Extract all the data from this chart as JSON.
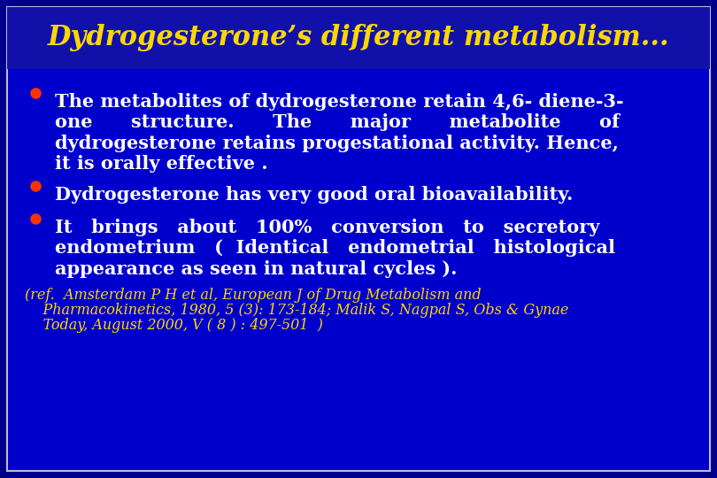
{
  "title": "Dydrogesterone’s different metabolism...",
  "title_color": "#FFD700",
  "title_fontsize": 22,
  "title_bg_color": "#1A1A8C",
  "bg_color": "#0000CC",
  "outer_bg": "#00008B",
  "border_color": "#AAAACC",
  "bullet_color": "#FF3300",
  "text_color": "#FFFFFF",
  "ref_color": "#FFD700",
  "bullet1_lines": [
    "The metabolites of dydrogesterone retain 4,6- diene-3-",
    "one      structure.      The      major      metabolite      of",
    "dydrogesterone retains progestational activity. Hence,",
    "it is orally effective ."
  ],
  "bullet2": "Dydrogesterone has very good oral bioavailability.",
  "bullet3_lines": [
    "It   brings   about   100%   conversion   to   secretory",
    "endometrium   (  Identical   endometrial   histological",
    "appearance as seen in natural cycles )."
  ],
  "ref_lines": [
    "(ref.  Amsterdam P H et al, European J of Drug Metabolism and",
    "    Pharmacokinetics, 1980, 5 (3): 173-184; Malik S, Nagpal S, Obs & Gynae",
    "    Today, August 2000, V ( 8 ) : 497-501  )"
  ],
  "bullet_fontsize": 15,
  "ref_fontsize": 11.5
}
